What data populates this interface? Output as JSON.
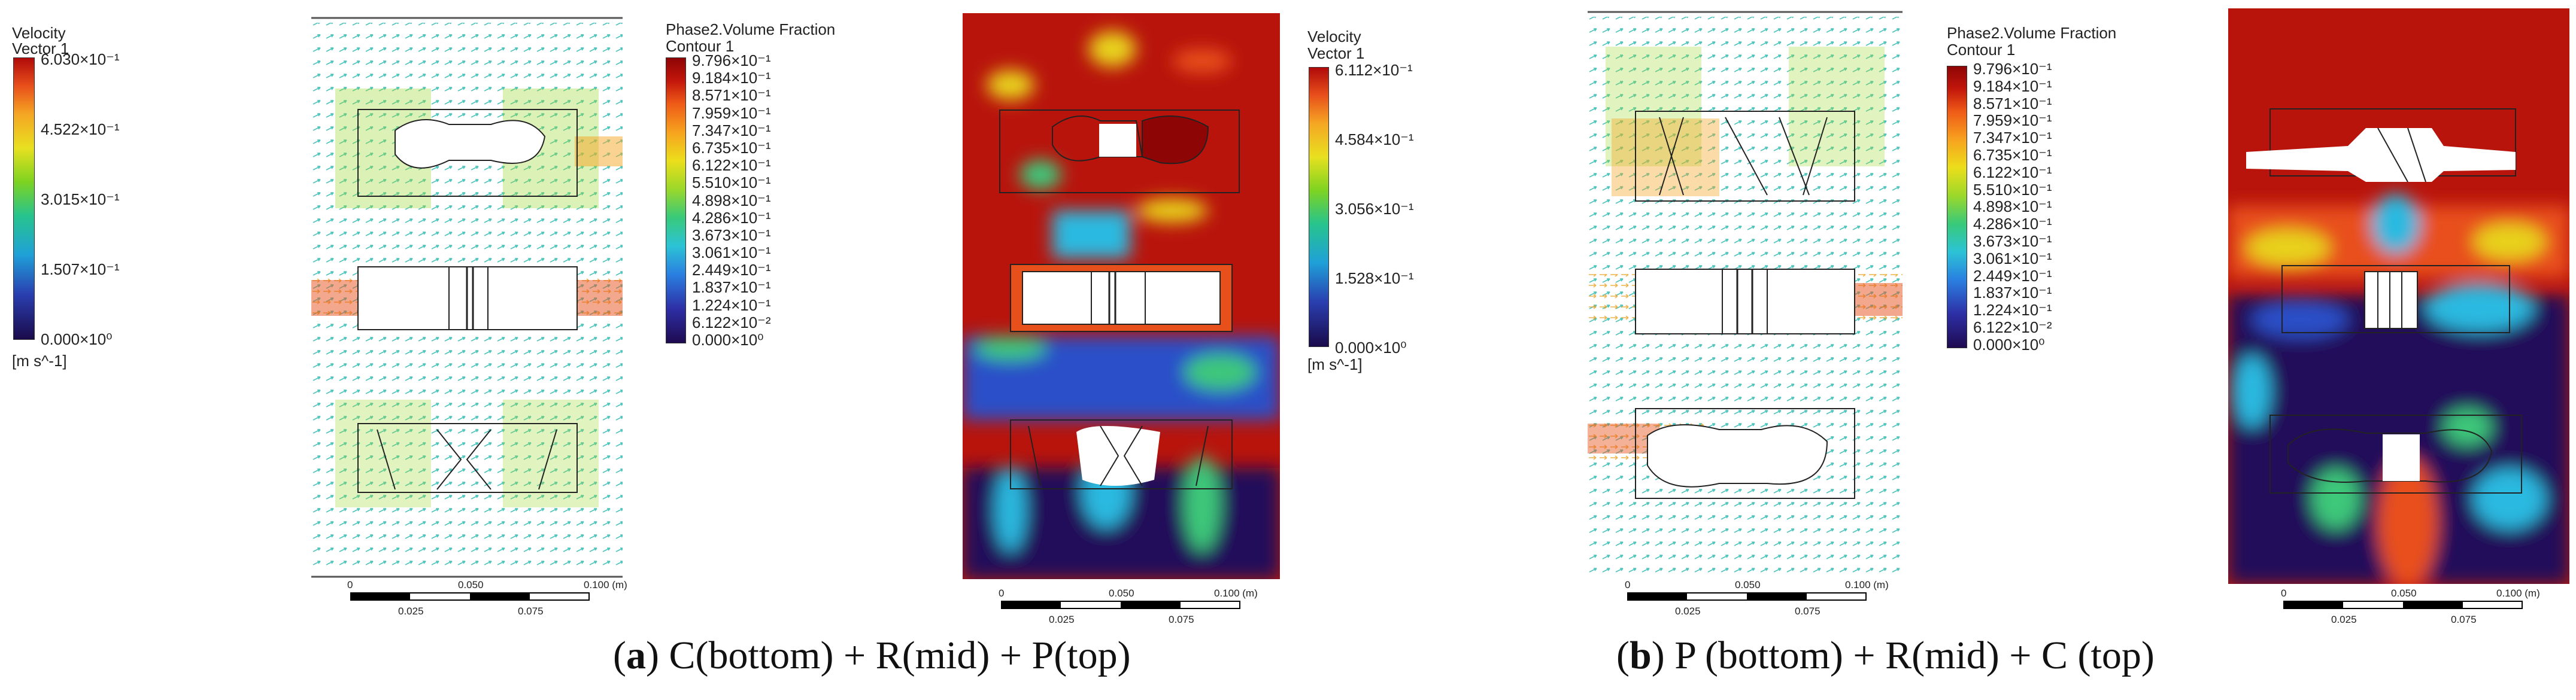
{
  "panel_a": {
    "velocity_legend": {
      "title": "Velocity",
      "subtitle": "Vector 1",
      "labels": [
        "6.030×10⁻¹",
        "4.522×10⁻¹",
        "3.015×10⁻¹",
        "1.507×10⁻¹",
        "0.000×10⁰"
      ],
      "unit": "[m s^-1]"
    },
    "fraction_legend": {
      "title": "Phase2.Volume Fraction",
      "subtitle": "Contour 1",
      "labels": [
        "9.796×10⁻¹",
        "9.184×10⁻¹",
        "8.571×10⁻¹",
        "7.959×10⁻¹",
        "7.347×10⁻¹",
        "6.735×10⁻¹",
        "6.122×10⁻¹",
        "5.510×10⁻¹",
        "4.898×10⁻¹",
        "4.286×10⁻¹",
        "3.673×10⁻¹",
        "3.061×10⁻¹",
        "2.449×10⁻¹",
        "1.837×10⁻¹",
        "1.224×10⁻¹",
        "6.122×10⁻²",
        "0.000×10⁰"
      ]
    },
    "velocity_legend_2": {
      "title": "Velocity",
      "subtitle": "Vector 1",
      "labels": [
        "6.112×10⁻¹",
        "4.584×10⁻¹",
        "3.056×10⁻¹",
        "1.528×10⁻¹",
        "0.000×10⁰"
      ],
      "unit": "[m s^-1]"
    },
    "scale_vector": {
      "top": [
        "0",
        "0.050",
        "0.100 (m)"
      ],
      "bottom": [
        "0.025",
        "0.075"
      ]
    },
    "scale_contour": {
      "top": [
        "0",
        "0.050",
        "0.100 (m)"
      ],
      "bottom": [
        "0.025",
        "0.075"
      ]
    },
    "caption_letter": "a",
    "caption_text": " C(bottom) + R(mid) + P(top)"
  },
  "panel_b": {
    "fraction_legend": {
      "title": "Phase2.Volume Fraction",
      "subtitle": "Contour 1",
      "labels": [
        "9.796×10⁻¹",
        "9.184×10⁻¹",
        "8.571×10⁻¹",
        "7.959×10⁻¹",
        "7.347×10⁻¹",
        "6.735×10⁻¹",
        "6.122×10⁻¹",
        "5.510×10⁻¹",
        "4.898×10⁻¹",
        "4.286×10⁻¹",
        "3.673×10⁻¹",
        "3.061×10⁻¹",
        "2.449×10⁻¹",
        "1.837×10⁻¹",
        "1.224×10⁻¹",
        "6.122×10⁻²",
        "0.000×10⁰"
      ]
    },
    "scale_vector": {
      "top": [
        "0",
        "0.050",
        "0.100 (m)"
      ],
      "bottom": [
        "0.025",
        "0.075"
      ]
    },
    "scale_contour": {
      "top": [
        "0",
        "0.050",
        "0.100 (m)"
      ],
      "bottom": [
        "0.025",
        "0.075"
      ]
    },
    "caption_letter": "b",
    "caption_text": " P (bottom) + R(mid) + C (top)"
  },
  "colors": {
    "contour_red": "#b8140c",
    "contour_orange": "#e8501b",
    "contour_yellow": "#e8d21e",
    "contour_green": "#3cc87a",
    "contour_cyan": "#2cb9e0",
    "contour_blue": "#2a4fc8",
    "contour_dark": "#230c5a"
  }
}
